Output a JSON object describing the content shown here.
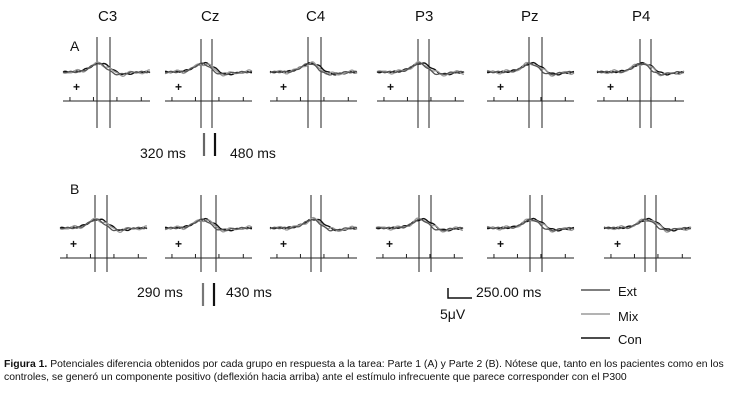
{
  "figure": {
    "channels": [
      "C3",
      "Cz",
      "C4",
      "P3",
      "Pz",
      "P4"
    ],
    "panel_a_label": "A",
    "panel_b_label": "B",
    "plus_marker": "+",
    "panel_a_times": {
      "first": "320 ms",
      "second": "480 ms"
    },
    "panel_b_times": {
      "first": "290 ms",
      "second": "430 ms"
    },
    "scale": {
      "time": "250.00 ms",
      "amplitude": "5μV"
    },
    "legend": [
      {
        "name": "Ext",
        "color": "#555555"
      },
      {
        "name": "Mix",
        "color": "#9a9a9a"
      },
      {
        "name": "Con",
        "color": "#111111"
      }
    ]
  },
  "caption": {
    "label": "Figura 1.",
    "text": "Potenciales diferencia obtenidos por cada grupo en respuesta a la tarea: Parte 1 (A) y Parte 2 (B). Nótese que, tanto en los pacientes como en los controles, se generó un componente positivo (deflexión hacia arriba) ante el estímulo infrecuente que parece corresponder con el P300"
  }
}
